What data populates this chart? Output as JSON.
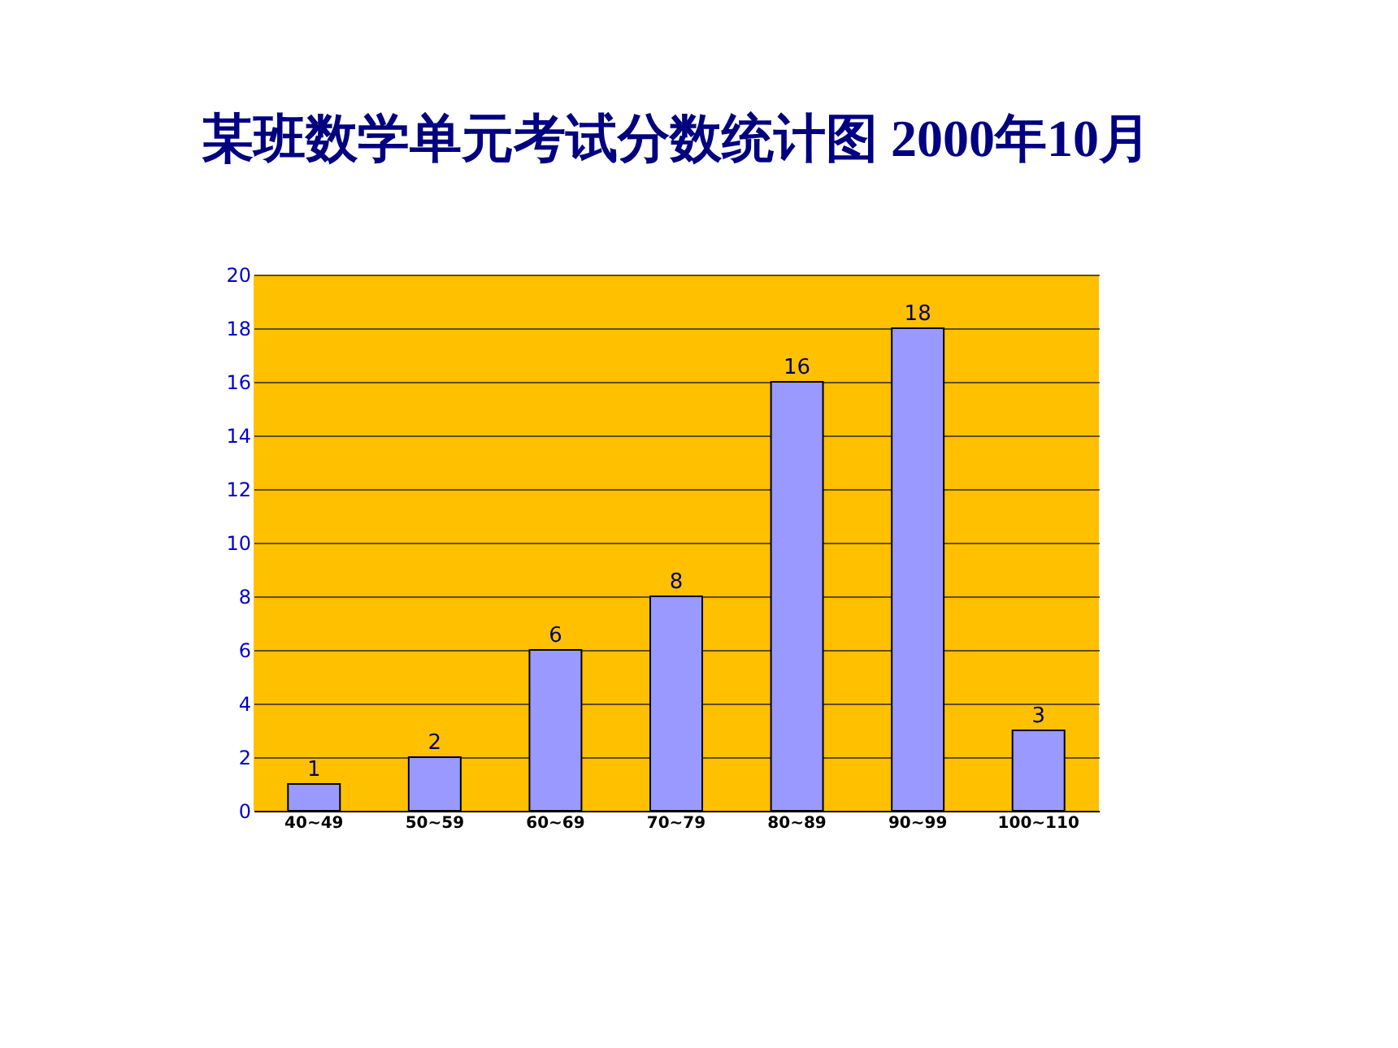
{
  "chart_data": {
    "type": "bar",
    "title": "某班数学单元考试分数统计图  2000年10月",
    "categories": [
      "40~49",
      "50~59",
      "60~69",
      "70~79",
      "80~89",
      "90~99",
      "100~110"
    ],
    "values": [
      1,
      2,
      6,
      8,
      16,
      18,
      3
    ],
    "color": "#9999ff",
    "ylim": [
      0,
      20
    ],
    "yticks": [
      0,
      2,
      4,
      6,
      8,
      10,
      12,
      14,
      16,
      18,
      20
    ],
    "grid": "y",
    "data_labels": true
  }
}
